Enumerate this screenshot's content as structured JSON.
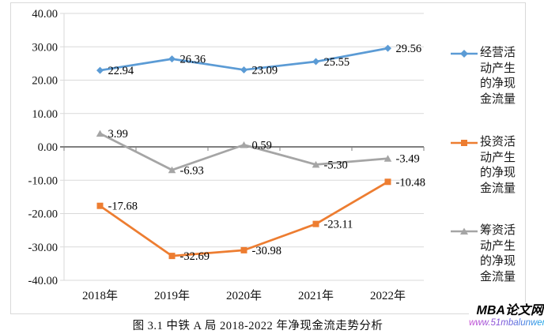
{
  "caption": "图 3.1 中铁 A 局 2018-2022 年净现金流走势分析",
  "watermark": {
    "title": "MBA论文网",
    "url": "www.51mbalunwen.com"
  },
  "colors": {
    "gridline": "#d9d9d9",
    "zero_axis": "#7f7f7f",
    "frame_border": "#d9d9d9",
    "text": "#111111"
  },
  "chart_data": {
    "type": "line",
    "title": "",
    "xlabel": "",
    "ylabel": "",
    "categories": [
      "2018年",
      "2019年",
      "2020年",
      "2021年",
      "2022年"
    ],
    "series": [
      {
        "name": "经营活动产生的净现金流量",
        "color": "#5b9bd5",
        "marker": "diamond",
        "values": [
          22.94,
          26.36,
          23.09,
          25.55,
          29.56
        ],
        "labels": [
          "22.94",
          "26.36",
          "23.09",
          "25.55",
          "29.56"
        ]
      },
      {
        "name": "投资活动产生的净现金流量",
        "color": "#ed7d31",
        "marker": "square",
        "values": [
          -17.68,
          -32.69,
          -30.98,
          -23.11,
          -10.48
        ],
        "labels": [
          "-17.68",
          "-32.69",
          "-30.98",
          "-23.11",
          "-10.48"
        ]
      },
      {
        "name": "筹资活动产生的净现金流量",
        "color": "#a5a5a5",
        "marker": "triangle",
        "values": [
          3.99,
          -6.93,
          0.59,
          -5.3,
          -3.49
        ],
        "labels": [
          "3.99",
          "-6.93",
          "0.59",
          "-5.30",
          "-3.49"
        ]
      }
    ],
    "ylim": [
      -40,
      40
    ],
    "ytick_step": 10,
    "ytick_labels": [
      "40.00",
      "30.00",
      "20.00",
      "10.00",
      "0.00",
      "-10.00",
      "-20.00",
      "-30.00",
      "-40.00"
    ],
    "grid": "horizontal",
    "legend_position": "right",
    "data_labels": "right"
  }
}
